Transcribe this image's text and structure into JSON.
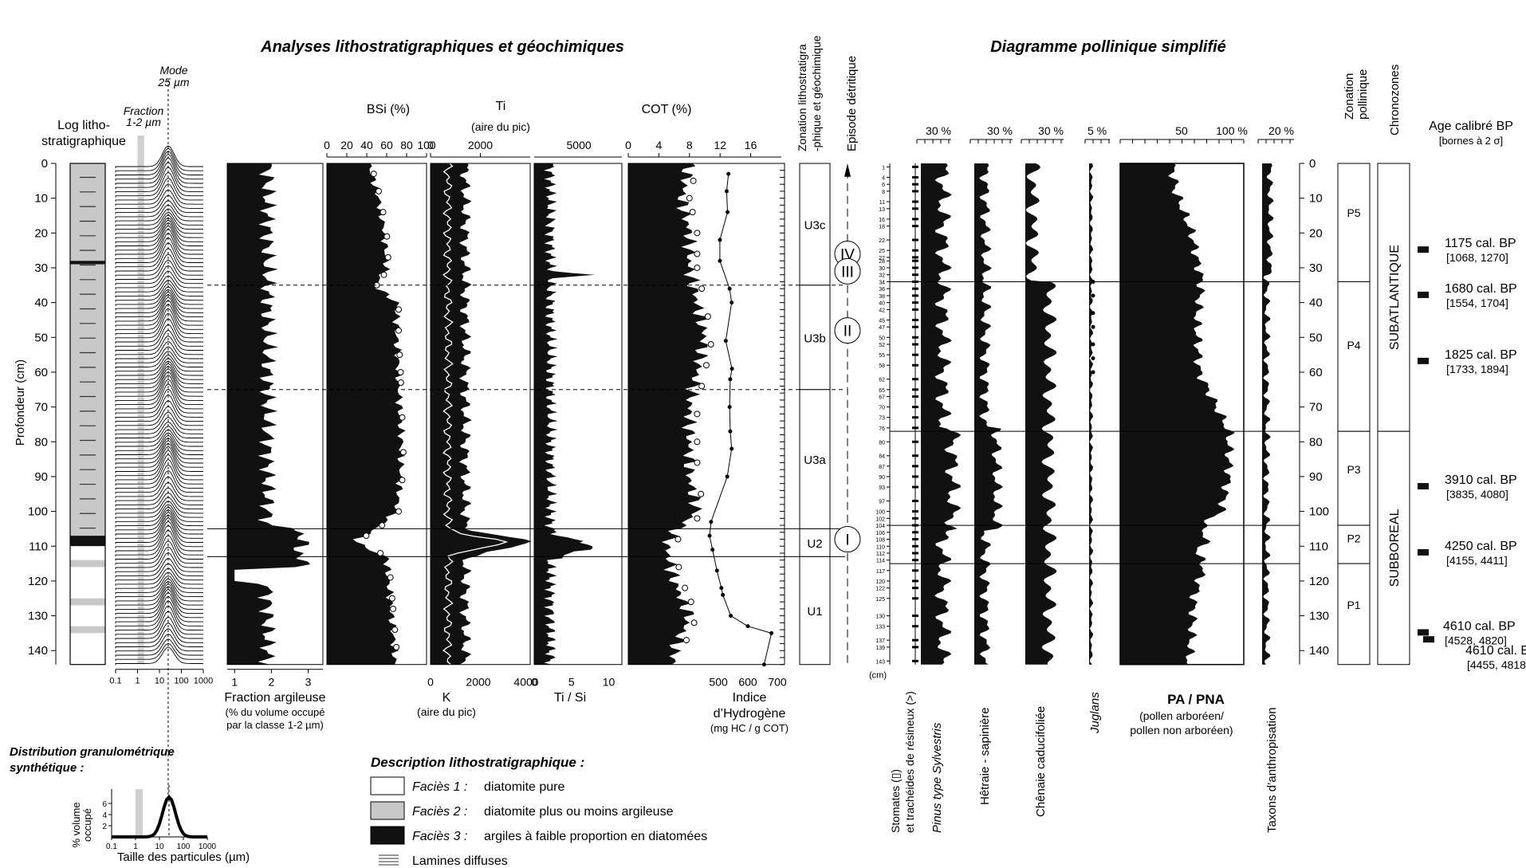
{
  "titles": {
    "left": "Analyses lithostratigraphiques et géochimiques",
    "right": "Diagramme pollinique simplifié"
  },
  "axis": {
    "depth_label": "Profondeur (cm)",
    "depth_ticks": [
      0,
      10,
      20,
      30,
      40,
      50,
      60,
      70,
      80,
      90,
      100,
      110,
      120,
      130,
      140
    ],
    "cm_unit": "(cm)"
  },
  "log": {
    "title_1": "Log litho-",
    "title_2": "stratigraphique",
    "facies_colors": {
      "f1": "#ffffff",
      "f2": "#c8c8c8",
      "f3": "#111111"
    },
    "units": [
      {
        "top": 0,
        "bottom": 28,
        "facies": "f2"
      },
      {
        "top": 28,
        "bottom": 29,
        "facies": "f3"
      },
      {
        "top": 29,
        "bottom": 107,
        "facies": "f2"
      },
      {
        "top": 107,
        "bottom": 110,
        "facies": "f3"
      },
      {
        "top": 110,
        "bottom": 114,
        "facies": "f1"
      },
      {
        "top": 114,
        "bottom": 116,
        "facies": "f2"
      },
      {
        "top": 116,
        "bottom": 125,
        "facies": "f1"
      },
      {
        "top": 125,
        "bottom": 127,
        "facies": "f2"
      },
      {
        "top": 127,
        "bottom": 133,
        "facies": "f1"
      },
      {
        "top": 133,
        "bottom": 135,
        "facies": "f2"
      },
      {
        "top": 135,
        "bottom": 144,
        "facies": "f1"
      }
    ]
  },
  "grain": {
    "mode_label_1": "Mode",
    "mode_label_2": "25 µm",
    "fraction_label_1": "Fraction",
    "fraction_label_2": "1-2 µm",
    "x_ticks": [
      "0.1",
      "1",
      "10",
      "100",
      "1000"
    ]
  },
  "argile": {
    "x_ticks": [
      "1",
      "2",
      "3"
    ],
    "label_1": "Fraction argileuse",
    "label_2": "(% du volume occupé",
    "label_3": "par la classe 1-2 µm)"
  },
  "bsi": {
    "title": "BSi (%)",
    "ticks": [
      "0",
      "20",
      "40",
      "60",
      "80",
      "100"
    ]
  },
  "ti": {
    "title": "Ti",
    "subtitle": "(aire du pic)",
    "ticks": [
      "0",
      "2000"
    ],
    "k_ticks": [
      "0",
      "2000",
      "4000"
    ],
    "k_label_1": "K",
    "k_label_2": "(aire du pic)"
  },
  "tisi": {
    "top_ticks": [
      "5000"
    ],
    "ticks": [
      "0",
      "5",
      "10"
    ],
    "label": "Ti / Si"
  },
  "cot": {
    "title": "COT (%)",
    "ticks": [
      "0",
      "4",
      "8",
      "12",
      "16"
    ],
    "hi_ticks": [
      "500",
      "600",
      "700"
    ],
    "hi_label_1": "Indice",
    "hi_label_2": "d’Hydrogène",
    "hi_label_3": "(mg HC / g COT)"
  },
  "zonation": {
    "title_1": "Zonation lithostratigra",
    "title_2": "-phique et géochimique",
    "zones": [
      {
        "label": "U3c",
        "top": 0,
        "bottom": 35
      },
      {
        "label": "U3b",
        "top": 35,
        "bottom": 65
      },
      {
        "label": "U3a",
        "top": 65,
        "bottom": 105
      },
      {
        "label": "U2",
        "top": 105,
        "bottom": 113
      },
      {
        "label": "U1",
        "top": 113,
        "bottom": 144
      }
    ]
  },
  "episodes": {
    "title": "Episode détritique",
    "items": [
      {
        "label": "IV",
        "depth": 26
      },
      {
        "label": "III",
        "depth": 31
      },
      {
        "label": "II",
        "depth": 48
      },
      {
        "label": "I",
        "depth": 108
      }
    ]
  },
  "pollen": {
    "taxa": [
      {
        "label": "Stomates (▯)",
        "label_2": "et trachéides de résineux (>)"
      },
      {
        "label": "Pinus type Sylvestris",
        "italic": "true",
        "scale": "30 %"
      },
      {
        "label": "Hêtraie - sapinière",
        "scale": "30 %"
      },
      {
        "label": "Chênaie caducifoliée",
        "scale": "30 %"
      },
      {
        "label": "Juglans",
        "italic": "true",
        "scale": "5 %"
      },
      {
        "label": "PA / PNA",
        "sub_1": "(pollen arboréen/",
        "sub_2": "pollen non arboréen)",
        "ticks": [
          "50",
          "100 %"
        ]
      },
      {
        "label": "Taxons d’anthropisation",
        "scale": "20 %"
      }
    ],
    "sample_depths": [
      "1",
      "4",
      "6",
      "8",
      "11",
      "13",
      "16",
      "18",
      "22",
      "25",
      "27",
      "28",
      "30",
      "32",
      "34",
      "36",
      "38",
      "40",
      "42",
      "45",
      "47",
      "50",
      "52",
      "55",
      "58",
      "62",
      "65",
      "67",
      "70",
      "73",
      "76",
      "80",
      "84",
      "87",
      "90",
      "93",
      "97",
      "100",
      "102",
      "104",
      "106",
      "108",
      "110",
      "112",
      "114",
      "117",
      "120",
      "122",
      "125",
      "130",
      "133",
      "137",
      "139",
      "143"
    ]
  },
  "pollen_zones": {
    "title_1": "Zonation",
    "title_2": "pollinique",
    "zones": [
      {
        "label": "P5",
        "top": 0,
        "bottom": 34
      },
      {
        "label": "P4",
        "top": 34,
        "bottom": 77
      },
      {
        "label": "P3",
        "top": 77,
        "bottom": 104
      },
      {
        "label": "P2",
        "top": 104,
        "bottom": 115
      },
      {
        "label": "P1",
        "top": 115,
        "bottom": 144
      }
    ]
  },
  "chronozones": {
    "title": "Chronozones",
    "zones": [
      {
        "label": "SUBATLANTIQUE",
        "top": 0,
        "bottom": 77
      },
      {
        "label": "SUBBOREAL",
        "top": 77,
        "bottom": 144
      }
    ]
  },
  "ages": {
    "title_1": "Age calibré BP",
    "title_2": "[bornes à 2 σ]",
    "items": [
      {
        "depth": 25,
        "age": "1175 cal. BP",
        "range": "[1068, 1270]"
      },
      {
        "depth": 38,
        "age": "1680 cal. BP",
        "range": "[1554, 1704]"
      },
      {
        "depth": 57,
        "age": "1825 cal. BP",
        "range": "[1733, 1894]"
      },
      {
        "depth": 93,
        "age": "3910 cal. BP",
        "range": "[3835, 4080]"
      },
      {
        "depth": 112,
        "age": "4250 cal. BP",
        "range": "[4155, 4411]"
      },
      {
        "depth": 135,
        "age": "4610 cal. BP",
        "range": "[4528, 4820]"
      },
      {
        "depth": 137,
        "age": "4610 cal. BP",
        "range": "[4455, 4818]"
      }
    ]
  },
  "legend": {
    "gran_title_1": "Distribution granulométrique",
    "gran_title_2": "synthétique :",
    "gran_ylabel_1": "% volume",
    "gran_ylabel_2": "occupé",
    "gran_xlabel": "Taille des particules (µm)",
    "gran_yticks": [
      "2",
      "4",
      "6"
    ],
    "gran_xticks": [
      "0.1",
      "1",
      "10",
      "100",
      "1000"
    ],
    "desc_title": "Description lithostratigraphique :",
    "facies": [
      {
        "name": "Faciès 1 :",
        "desc": "diatomite pure",
        "color": "#ffffff"
      },
      {
        "name": "Faciès 2 :",
        "desc": "diatomite plus ou moins argileuse",
        "color": "#c8c8c8"
      },
      {
        "name": "Faciès 3 :",
        "desc": "argiles à faible proportion en diatomées",
        "color": "#111111"
      }
    ],
    "lamines": "Lamines diffuses"
  },
  "chart_data": {
    "type": "area",
    "depth_axis": {
      "label": "Profondeur (cm)",
      "range": [
        0,
        144
      ]
    },
    "series": [
      {
        "name": "BSi (%)",
        "depth": [
          0,
          10,
          20,
          30,
          35,
          40,
          50,
          60,
          70,
          80,
          90,
          100,
          106,
          108,
          110,
          113,
          120,
          130,
          140
        ],
        "values": [
          42,
          52,
          58,
          60,
          48,
          70,
          70,
          72,
          73,
          75,
          74,
          70,
          45,
          30,
          35,
          60,
          62,
          65,
          68
        ]
      },
      {
        "name": "COT (%)",
        "depth": [
          0,
          10,
          20,
          30,
          40,
          50,
          60,
          70,
          80,
          90,
          100,
          106,
          110,
          120,
          130,
          140
        ],
        "values": [
          8,
          7,
          8,
          8,
          9,
          10,
          9,
          8,
          8,
          8,
          9,
          6,
          5,
          6,
          8,
          6
        ]
      },
      {
        "name": "Indice d’Hydrogène",
        "depth": [
          3,
          8,
          14,
          22,
          28,
          36,
          40,
          51,
          59,
          62,
          70,
          77,
          82,
          90,
          103,
          107,
          111,
          117,
          122,
          124,
          130,
          133,
          135,
          144
        ],
        "values": [
          534,
          528,
          531,
          505,
          505,
          538,
          545,
          525,
          546,
          540,
          538,
          540,
          545,
          530,
          475,
          470,
          480,
          495,
          510,
          515,
          542,
          600,
          680,
          655
        ]
      },
      {
        "name": "PA / PNA",
        "depth": [
          0,
          8,
          20,
          34,
          45,
          60,
          77,
          90,
          100,
          104,
          108,
          112,
          115,
          125,
          135,
          144
        ],
        "values": [
          42,
          45,
          58,
          66,
          62,
          64,
          88,
          88,
          82,
          66,
          70,
          62,
          68,
          60,
          58,
          55
        ]
      }
    ]
  }
}
